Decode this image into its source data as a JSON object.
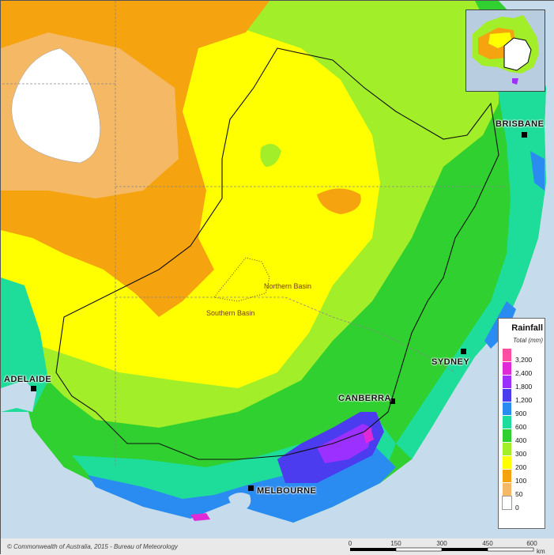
{
  "map": {
    "cities": [
      {
        "name": "BRISBANE"
      },
      {
        "name": "SYDNEY"
      },
      {
        "name": "CANBERRA"
      },
      {
        "name": "ADELAIDE"
      },
      {
        "name": "MELBOURNE"
      }
    ],
    "basins": [
      {
        "name": "Northern Basin"
      },
      {
        "name": "Southern Basin"
      }
    ]
  },
  "legend": {
    "title": "Rainfall",
    "subtitle": "Total (mm)",
    "classes": [
      {
        "label": "3,200",
        "color": "#ff4fa3"
      },
      {
        "label": "2,400",
        "color": "#e02ad8"
      },
      {
        "label": "1,800",
        "color": "#9b30ff"
      },
      {
        "label": "1,200",
        "color": "#4b3cf0"
      },
      {
        "label": "900",
        "color": "#2a8cf0"
      },
      {
        "label": "600",
        "color": "#1edc9a"
      },
      {
        "label": "400",
        "color": "#2fd02f"
      },
      {
        "label": "300",
        "color": "#a2ee28"
      },
      {
        "label": "200",
        "color": "#ffff00"
      },
      {
        "label": "100",
        "color": "#f5a30f"
      },
      {
        "label": "50",
        "color": "#f5b865"
      },
      {
        "label": "0",
        "color": "#ffffff"
      }
    ]
  },
  "footer": {
    "copyright": "© Commonwealth of Australia, 2015 - Bureau of Meteorology",
    "scale": {
      "ticks": [
        "0",
        "150",
        "300",
        "450",
        "600"
      ],
      "unit": "km"
    }
  },
  "colors": {
    "ocean": "#c6dcec",
    "basin_boundary": "#111111",
    "state_border": "#888888"
  }
}
